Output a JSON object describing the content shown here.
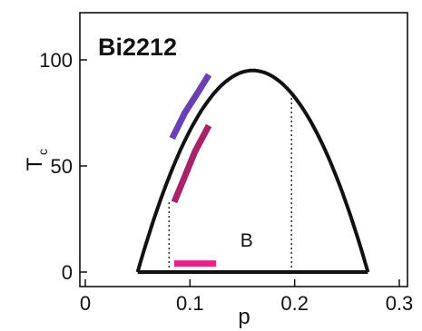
{
  "chart_data": {
    "type": "line",
    "title": "Bi2212",
    "xlabel": "p",
    "ylabel_main": "T",
    "ylabel_sub": "c",
    "xlim": [
      0,
      0.3
    ],
    "ylim": [
      0,
      120
    ],
    "x_ticks": [
      0,
      0.1,
      0.2,
      0.3
    ],
    "x_tick_labels": [
      "0",
      "0.1",
      "0.2",
      "0.3"
    ],
    "y_ticks": [
      0,
      50,
      100
    ],
    "y_tick_labels": [
      "0",
      "50",
      "100"
    ],
    "grid": false,
    "legend": "none",
    "dome": {
      "p_min": 0.05,
      "p_max": 0.27,
      "p_opt": 0.16,
      "tc_max": 95,
      "color": "#111111"
    },
    "baseline": {
      "x": [
        0.05,
        0.27
      ],
      "y": [
        0,
        0
      ],
      "color": "#111111"
    },
    "dotted_lines": [
      {
        "x": 0.08,
        "y_from": 0,
        "y_to": 33
      },
      {
        "x": 0.197,
        "y_from": 0,
        "y_to": 84
      }
    ],
    "series": [
      {
        "x": [
          0.083,
          0.095,
          0.108,
          0.118
        ],
        "y": [
          63,
          75,
          85,
          93
        ],
        "color": "#6a3fb5"
      },
      {
        "x": [
          0.085,
          0.095,
          0.105,
          0.118
        ],
        "y": [
          33,
          45,
          57,
          69
        ],
        "color": "#a8226a"
      },
      {
        "x": [
          0.085,
          0.125
        ],
        "y": [
          4,
          4
        ],
        "color": "#e5228a"
      }
    ],
    "annotations": [
      {
        "text": "B",
        "x": 0.148,
        "y": 12
      }
    ]
  }
}
